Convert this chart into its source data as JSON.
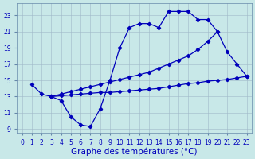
{
  "background_color": "#c8e8e8",
  "grid_color": "#a0b8c8",
  "line_color": "#0000bb",
  "xlim": [
    -0.5,
    23.5
  ],
  "ylim": [
    8.5,
    24.5
  ],
  "xlabel": "Graphe des températures (°C)",
  "xtick_labels": [
    "0",
    "1",
    "2",
    "3",
    "4",
    "5",
    "6",
    "7",
    "8",
    "9",
    "10",
    "11",
    "12",
    "13",
    "14",
    "15",
    "16",
    "17",
    "18",
    "19",
    "20",
    "21",
    "22",
    "23"
  ],
  "ytick_values": [
    9,
    11,
    13,
    15,
    17,
    19,
    21,
    23
  ],
  "tick_fontsize": 5.5,
  "xlabel_fontsize": 7.5,
  "jagged_x": [
    1,
    2,
    3,
    4,
    5,
    6,
    7,
    8,
    9,
    10,
    11,
    12,
    13,
    14,
    15,
    16,
    17,
    18,
    19,
    20,
    21,
    22,
    23
  ],
  "jagged_y": [
    14.5,
    13.3,
    13.0,
    12.5,
    10.5,
    9.5,
    9.3,
    11.5,
    15.0,
    19.0,
    21.5,
    22.0,
    22.0,
    21.5,
    23.5,
    23.5,
    23.5,
    22.5,
    22.5,
    21.0,
    18.5,
    17.0,
    15.5
  ],
  "diag1_x": [
    3,
    4,
    5,
    6,
    7,
    8,
    9,
    10,
    11,
    12,
    13,
    14,
    15,
    16,
    17,
    18,
    19,
    20
  ],
  "diag1_y": [
    13.0,
    13.3,
    13.6,
    13.9,
    14.2,
    14.5,
    14.8,
    15.1,
    15.4,
    15.7,
    16.0,
    16.5,
    17.0,
    17.5,
    18.0,
    18.8,
    19.8,
    21.0
  ],
  "diag2_x": [
    3,
    4,
    5,
    6,
    7,
    8,
    9,
    10,
    11,
    12,
    13,
    14,
    15,
    16,
    17,
    18,
    19,
    20,
    21,
    22,
    23
  ],
  "diag2_y": [
    13.0,
    13.1,
    13.2,
    13.3,
    13.4,
    13.5,
    13.5,
    13.6,
    13.7,
    13.8,
    13.9,
    14.0,
    14.2,
    14.4,
    14.6,
    14.7,
    14.9,
    15.0,
    15.1,
    15.3,
    15.5
  ]
}
